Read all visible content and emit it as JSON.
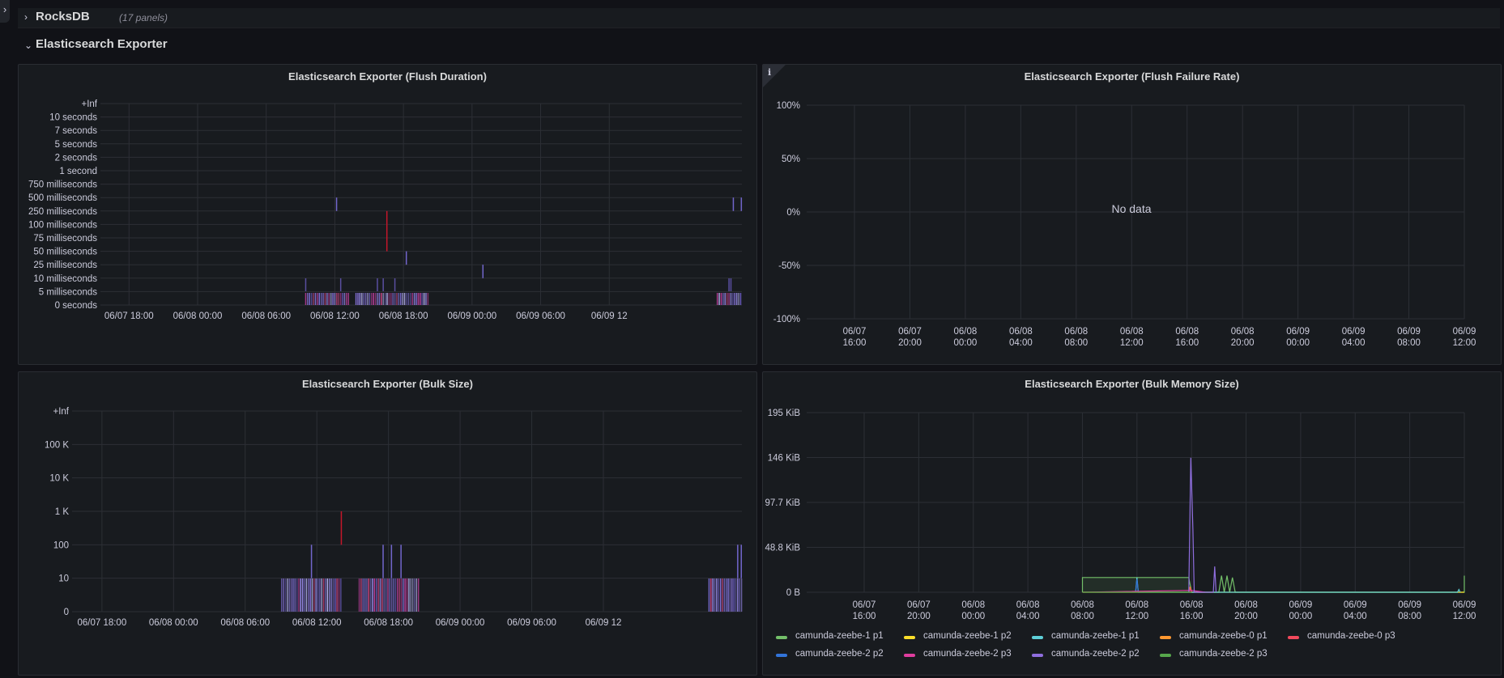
{
  "rows": {
    "rocksdb": {
      "title": "RocksDB",
      "count": "(17 panels)"
    },
    "exporter": {
      "title": "Elasticsearch Exporter"
    }
  },
  "panels": {
    "flush_duration": {
      "title": "Elasticsearch Exporter (Flush Duration)"
    },
    "flush_failure": {
      "title": "Elasticsearch Exporter (Flush Failure Rate)",
      "info_icon": "info-icon",
      "no_data": "No data"
    },
    "bulk_size": {
      "title": "Elasticsearch Exporter (Bulk Size)"
    },
    "bulk_memory": {
      "title": "Elasticsearch Exporter (Bulk Memory Size)"
    }
  },
  "colors": {
    "purple": "#8070d8",
    "magenta": "#d44a8a",
    "red": "#c4162a",
    "green": "#73bf69",
    "teal": "#5ed0d8",
    "background": "#111217",
    "panel": "#181b1f"
  },
  "chart_data": [
    {
      "type": "heatmap",
      "title": "Elasticsearch Exporter (Flush Duration)",
      "y_buckets": [
        "+Inf",
        "10 seconds",
        "7 seconds",
        "5 seconds",
        "2 seconds",
        "1 second",
        "750 milliseconds",
        "500 milliseconds",
        "250 milliseconds",
        "100 milliseconds",
        "75 milliseconds",
        "50 milliseconds",
        "25 milliseconds",
        "10 milliseconds",
        "5 milliseconds",
        "0 seconds"
      ],
      "x_ticks": [
        "06/07 18:00",
        "06/08 00:00",
        "06/08 06:00",
        "06/08 12:00",
        "06/08 18:00",
        "06/09 00:00",
        "06/09 06:00",
        "06/09 12"
      ],
      "x_range_hours": [
        -8.5,
        47.6
      ],
      "activity_windows_hours": [
        [
          9.4,
          13.2
        ],
        [
          13.8,
          20.1
        ],
        [
          45.4,
          47.6
        ]
      ],
      "sparse_marks": [
        {
          "h": 12.1,
          "bucket": "500 milliseconds"
        },
        {
          "h": 16.5,
          "bucket": "250 milliseconds"
        },
        {
          "h": 16.5,
          "bucket": "100 milliseconds"
        },
        {
          "h": 16.5,
          "bucket": "75 milliseconds"
        },
        {
          "h": 18.2,
          "bucket": "50 milliseconds"
        },
        {
          "h": 46.8,
          "bucket": "500 milliseconds"
        },
        {
          "h": 47.5,
          "bucket": "500 milliseconds"
        },
        {
          "h": 24.9,
          "bucket": "25 milliseconds"
        }
      ]
    },
    {
      "type": "line",
      "title": "Elasticsearch Exporter (Flush Failure Rate)",
      "y_ticks": [
        "100%",
        "50%",
        "0%",
        "-50%",
        "-100%"
      ],
      "x_ticks": [
        [
          "06/07",
          "16:00"
        ],
        [
          "06/07",
          "20:00"
        ],
        [
          "06/08",
          "00:00"
        ],
        [
          "06/08",
          "04:00"
        ],
        [
          "06/08",
          "08:00"
        ],
        [
          "06/08",
          "12:00"
        ],
        [
          "06/08",
          "16:00"
        ],
        [
          "06/08",
          "20:00"
        ],
        [
          "06/09",
          "00:00"
        ],
        [
          "06/09",
          "04:00"
        ],
        [
          "06/09",
          "08:00"
        ],
        [
          "06/09",
          "12:00"
        ]
      ],
      "series": []
    },
    {
      "type": "heatmap",
      "title": "Elasticsearch Exporter (Bulk Size)",
      "y_buckets": [
        "+Inf",
        "100 K",
        "10 K",
        "1 K",
        "100",
        "10",
        "0"
      ],
      "x_ticks": [
        "06/07 18:00",
        "06/08 00:00",
        "06/08 06:00",
        "06/08 12:00",
        "06/08 18:00",
        "06/09 00:00",
        "06/09 06:00",
        "06/09 12"
      ],
      "x_range_hours": [
        -8.5,
        47.6
      ],
      "activity_windows_hours": [
        [
          9.0,
          14.0
        ],
        [
          15.5,
          20.5
        ],
        [
          44.8,
          47.6
        ]
      ],
      "sparse_marks": [
        {
          "h": 14.0,
          "bucket": "1 K"
        },
        {
          "h": 11.5,
          "bucket": "100"
        },
        {
          "h": 17.5,
          "bucket": "100"
        },
        {
          "h": 18.2,
          "bucket": "100"
        },
        {
          "h": 19.0,
          "bucket": "100"
        },
        {
          "h": 47.2,
          "bucket": "100"
        },
        {
          "h": 47.5,
          "bucket": "100"
        }
      ]
    },
    {
      "type": "line",
      "title": "Elasticsearch Exporter (Bulk Memory Size)",
      "y_ticks": [
        "195 KiB",
        "146 KiB",
        "97.7 KiB",
        "48.8 KiB",
        "0 B"
      ],
      "ylim_kib": [
        0,
        195
      ],
      "x_ticks": [
        [
          "06/07",
          "16:00"
        ],
        [
          "06/07",
          "20:00"
        ],
        [
          "06/08",
          "00:00"
        ],
        [
          "06/08",
          "04:00"
        ],
        [
          "06/08",
          "08:00"
        ],
        [
          "06/08",
          "12:00"
        ],
        [
          "06/08",
          "16:00"
        ],
        [
          "06/08",
          "20:00"
        ],
        [
          "06/09",
          "00:00"
        ],
        [
          "06/09",
          "04:00"
        ],
        [
          "06/09",
          "08:00"
        ],
        [
          "06/09",
          "12:00"
        ]
      ],
      "x_range_hours": [
        12.7,
        60.0
      ],
      "series": [
        {
          "name": "camunda-zeebe-1 p1",
          "color": "#73bf69",
          "points": [
            [
              32,
              0
            ],
            [
              32,
              16
            ],
            [
              39.8,
              16
            ],
            [
              40,
              0
            ],
            [
              42,
              0
            ],
            [
              42.2,
              18
            ],
            [
              42.4,
              0
            ],
            [
              42.6,
              18
            ],
            [
              42.8,
              0
            ],
            [
              43,
              16
            ],
            [
              43.2,
              0
            ],
            [
              60,
              0
            ],
            [
              60,
              18
            ]
          ]
        },
        {
          "name": "camunda-zeebe-1 p2",
          "color": "#fade2a",
          "points": [
            [
              32,
              0
            ],
            [
              60,
              0
            ]
          ]
        },
        {
          "name": "camunda-zeebe-1 p1",
          "color": "#5ed0d8",
          "points": [
            [
              35.9,
              0
            ],
            [
              36,
              16
            ],
            [
              36.1,
              0
            ],
            [
              59.5,
              0
            ],
            [
              59.6,
              3
            ],
            [
              59.7,
              0
            ]
          ]
        },
        {
          "name": "camunda-zeebe-0 p1",
          "color": "#ff9830",
          "points": [
            [
              39.8,
              0
            ],
            [
              39.9,
              6
            ],
            [
              40,
              0
            ]
          ]
        },
        {
          "name": "camunda-zeebe-0 p3",
          "color": "#f2495c",
          "points": [
            [
              39.8,
              0
            ],
            [
              39.9,
              4
            ],
            [
              40,
              0
            ]
          ]
        },
        {
          "name": "camunda-zeebe-2 p2",
          "color": "#3274d9",
          "points": [
            [
              35.9,
              0
            ],
            [
              36,
              14
            ],
            [
              36.1,
              0
            ]
          ]
        },
        {
          "name": "camunda-zeebe-2 p3",
          "color": "#e03d9e",
          "points": [
            [
              32,
              0
            ],
            [
              40,
              2
            ],
            [
              41,
              0
            ]
          ]
        },
        {
          "name": "camunda-zeebe-2 p2",
          "color": "#8f6edf",
          "points": [
            [
              39.8,
              0
            ],
            [
              39.95,
              146
            ],
            [
              40.1,
              68
            ],
            [
              40.2,
              0
            ],
            [
              41.6,
              0
            ],
            [
              41.7,
              28
            ],
            [
              41.8,
              0
            ]
          ]
        },
        {
          "name": "camunda-zeebe-2 p3",
          "color": "#56a64b",
          "points": [
            [
              32,
              0
            ],
            [
              40,
              0
            ]
          ]
        }
      ],
      "legend": [
        {
          "label": "camunda-zeebe-1 p1",
          "color": "#73bf69"
        },
        {
          "label": "camunda-zeebe-1 p2",
          "color": "#fade2a"
        },
        {
          "label": "camunda-zeebe-1 p1",
          "color": "#5ed0d8"
        },
        {
          "label": "camunda-zeebe-0 p1",
          "color": "#ff9830"
        },
        {
          "label": "camunda-zeebe-0 p3",
          "color": "#f2495c"
        },
        {
          "label": "camunda-zeebe-2 p2",
          "color": "#3274d9"
        },
        {
          "label": "camunda-zeebe-2 p3",
          "color": "#e03d9e"
        },
        {
          "label": "camunda-zeebe-2 p2",
          "color": "#8f6edf"
        },
        {
          "label": "camunda-zeebe-2 p3",
          "color": "#56a64b"
        }
      ]
    }
  ]
}
